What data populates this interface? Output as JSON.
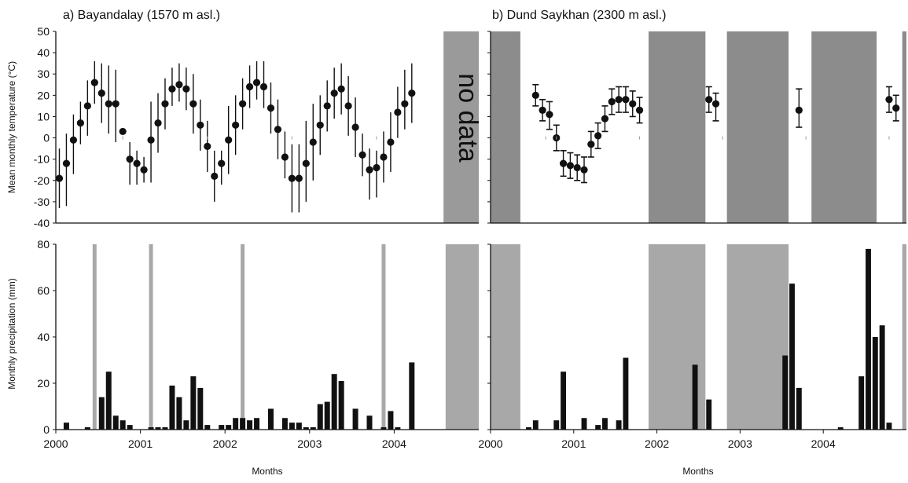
{
  "panel_titles": {
    "a": "a) Bayandalay (1570 m asl.)",
    "b": "b) Dund Saykhan (2300 m asl.)"
  },
  "axis_labels": {
    "temp_y": "Mean monthly temperature (°C)",
    "precip_y": "Monthly precipitation (mm)",
    "x_left": "Months",
    "x_right": "Months"
  },
  "annotations": {
    "no_data": "no data"
  },
  "colors": {
    "marker": "#111111",
    "gap_shade": "#8c8c8c",
    "gap_shade_light": "#a8a8a8",
    "bar": "#111111"
  },
  "chart_data": [
    {
      "id": "a-temp",
      "type": "scatter",
      "title": "a) Bayandalay (1570 m asl.)",
      "ylabel": "Mean monthly temperature (°C)",
      "x_ticks": [
        "2000",
        "2001",
        "2002",
        "2003",
        "2004"
      ],
      "y_ticks": [
        -40,
        -30,
        -20,
        -10,
        0,
        10,
        20,
        30,
        40,
        50
      ],
      "xlim": [
        0,
        60
      ],
      "ylim": [
        -40,
        50
      ],
      "series": [
        {
          "x": [
            0.5,
            1.5,
            2.5,
            3.5,
            4.5,
            5.5,
            6.5,
            7.5,
            8.5,
            9.5,
            10.5,
            11.5,
            12.5,
            13.5,
            14.5,
            15.5,
            16.5,
            17.5,
            18.5,
            19.5,
            20.5,
            21.5,
            22.5,
            23.5,
            24.5,
            25.5,
            26.5,
            27.5,
            28.5,
            29.5,
            30.5,
            31.5,
            32.5,
            33.5,
            34.5,
            35.5,
            36.5,
            37.5,
            38.5,
            39.5,
            40.5,
            41.5,
            42.5,
            43.5,
            44.5,
            45.5,
            46.5,
            47.5,
            48.5,
            49.5,
            50.5,
            51.5,
            52.5,
            53.5
          ],
          "y": [
            -19,
            -12,
            -1,
            7,
            15,
            26,
            21,
            16,
            16,
            3,
            -10,
            -12,
            -15,
            -1,
            7,
            16,
            23,
            25,
            23,
            16,
            6,
            -4,
            -18,
            -12,
            -1,
            6,
            16,
            24,
            26,
            24,
            14,
            4,
            -9,
            -19,
            -19,
            -12,
            -2,
            6,
            15,
            21,
            23,
            15,
            5,
            -8,
            -15,
            -14,
            -9,
            -2,
            12,
            16,
            21,
            null,
            null,
            null
          ],
          "err_low": [
            14,
            20,
            16,
            10,
            14,
            10,
            14,
            14,
            18,
            0,
            12,
            10,
            6,
            20,
            14,
            12,
            8,
            8,
            10,
            14,
            12,
            12,
            12,
            10,
            16,
            14,
            12,
            10,
            8,
            10,
            12,
            14,
            10,
            16,
            16,
            18,
            18,
            14,
            12,
            12,
            12,
            14,
            14,
            10,
            14,
            14,
            12,
            14,
            12,
            12,
            14,
            null,
            null,
            null
          ],
          "err_high": [
            14,
            14,
            12,
            10,
            12,
            10,
            14,
            18,
            16,
            0,
            8,
            6,
            6,
            18,
            14,
            12,
            10,
            10,
            10,
            14,
            12,
            12,
            12,
            6,
            16,
            14,
            12,
            10,
            10,
            12,
            12,
            14,
            12,
            16,
            16,
            20,
            18,
            14,
            12,
            12,
            12,
            14,
            14,
            10,
            10,
            8,
            12,
            14,
            12,
            16,
            14,
            null,
            null,
            null
          ]
        }
      ],
      "shaded_ranges": [
        [
          55,
          60
        ]
      ],
      "annotation": "no data"
    },
    {
      "id": "a-precip",
      "type": "bar",
      "ylabel": "Monthly precipitation (mm)",
      "xlabel": "Months",
      "x_ticks": [
        "2000",
        "2001",
        "2002",
        "2003",
        "2004"
      ],
      "y_ticks": [
        0,
        20,
        40,
        60,
        80
      ],
      "xlim": [
        0,
        60
      ],
      "ylim": [
        0,
        80
      ],
      "values": [
        0,
        3,
        0,
        0,
        1,
        0,
        14,
        25,
        6,
        4,
        2,
        0,
        0,
        1,
        1,
        1,
        19,
        14,
        4,
        23,
        18,
        2,
        0,
        2,
        2,
        5,
        5,
        4,
        5,
        0,
        9,
        0,
        5,
        3,
        3,
        1,
        1,
        11,
        12,
        24,
        21,
        0,
        9,
        0,
        6,
        0,
        1,
        8,
        1,
        0,
        29,
        null,
        null,
        null,
        null,
        null,
        null,
        null,
        null,
        null
      ],
      "gray_markers": [
        5.5,
        13.5,
        26.5,
        46.5
      ],
      "shaded_ranges": [
        [
          55.3,
          60
        ]
      ]
    },
    {
      "id": "b-temp",
      "type": "scatter",
      "title": "b) Dund Saykhan (2300 m asl.)",
      "x_ticks": [
        "2000",
        "2001",
        "2002",
        "2003",
        "2004"
      ],
      "y_ticks": [
        -40,
        -30,
        -20,
        -10,
        0,
        10,
        20,
        30,
        40,
        50
      ],
      "xlim": [
        0,
        60
      ],
      "ylim": [
        -40,
        50
      ],
      "series": [
        {
          "x": [
            6.5,
            7.5,
            8.5,
            9.5,
            10.5,
            11.5,
            12.5,
            13.5,
            14.5,
            15.5,
            16.5,
            17.5,
            18.5,
            19.5,
            20.5,
            21.5,
            31.5,
            32.5,
            44.5,
            57.5,
            58.5
          ],
          "y": [
            20,
            13,
            11,
            0,
            -12,
            -13,
            -14,
            -15,
            -3,
            1,
            9,
            17,
            18,
            18,
            16,
            13,
            18,
            16,
            13,
            18,
            14
          ],
          "err_low": [
            5,
            5,
            7,
            6,
            6,
            6,
            6,
            6,
            6,
            6,
            6,
            6,
            6,
            6,
            6,
            6,
            6,
            8,
            8,
            6,
            6
          ],
          "err_high": [
            5,
            5,
            6,
            6,
            6,
            6,
            6,
            6,
            6,
            6,
            6,
            6,
            6,
            6,
            6,
            6,
            6,
            5,
            10,
            6,
            6
          ]
        }
      ],
      "shaded_ranges": [
        [
          0,
          4.3
        ],
        [
          22.8,
          31
        ],
        [
          34.1,
          43
        ],
        [
          46.3,
          55.7
        ],
        [
          59.4,
          60
        ]
      ]
    },
    {
      "id": "b-precip",
      "type": "bar",
      "xlabel": "Months",
      "x_ticks": [
        "2000",
        "2001",
        "2002",
        "2003",
        "2004"
      ],
      "y_ticks": [
        0,
        20,
        40,
        60,
        80
      ],
      "xlim": [
        0,
        60
      ],
      "ylim": [
        0,
        80
      ],
      "values": [
        null,
        null,
        null,
        null,
        null,
        1,
        4,
        0,
        0,
        4,
        25,
        0,
        0,
        5,
        0,
        2,
        5,
        0,
        4,
        31,
        null,
        null,
        null,
        null,
        null,
        null,
        null,
        null,
        null,
        28,
        0,
        13,
        null,
        null,
        null,
        null,
        null,
        null,
        null,
        null,
        null,
        null,
        32,
        63,
        18,
        0,
        0,
        0,
        0,
        0,
        1,
        0,
        0,
        23,
        78,
        40,
        45,
        3,
        null,
        null
      ],
      "shaded_ranges": [
        [
          0,
          4.3
        ],
        [
          22.8,
          31
        ],
        [
          34.1,
          43
        ],
        [
          59.4,
          60
        ]
      ]
    }
  ]
}
